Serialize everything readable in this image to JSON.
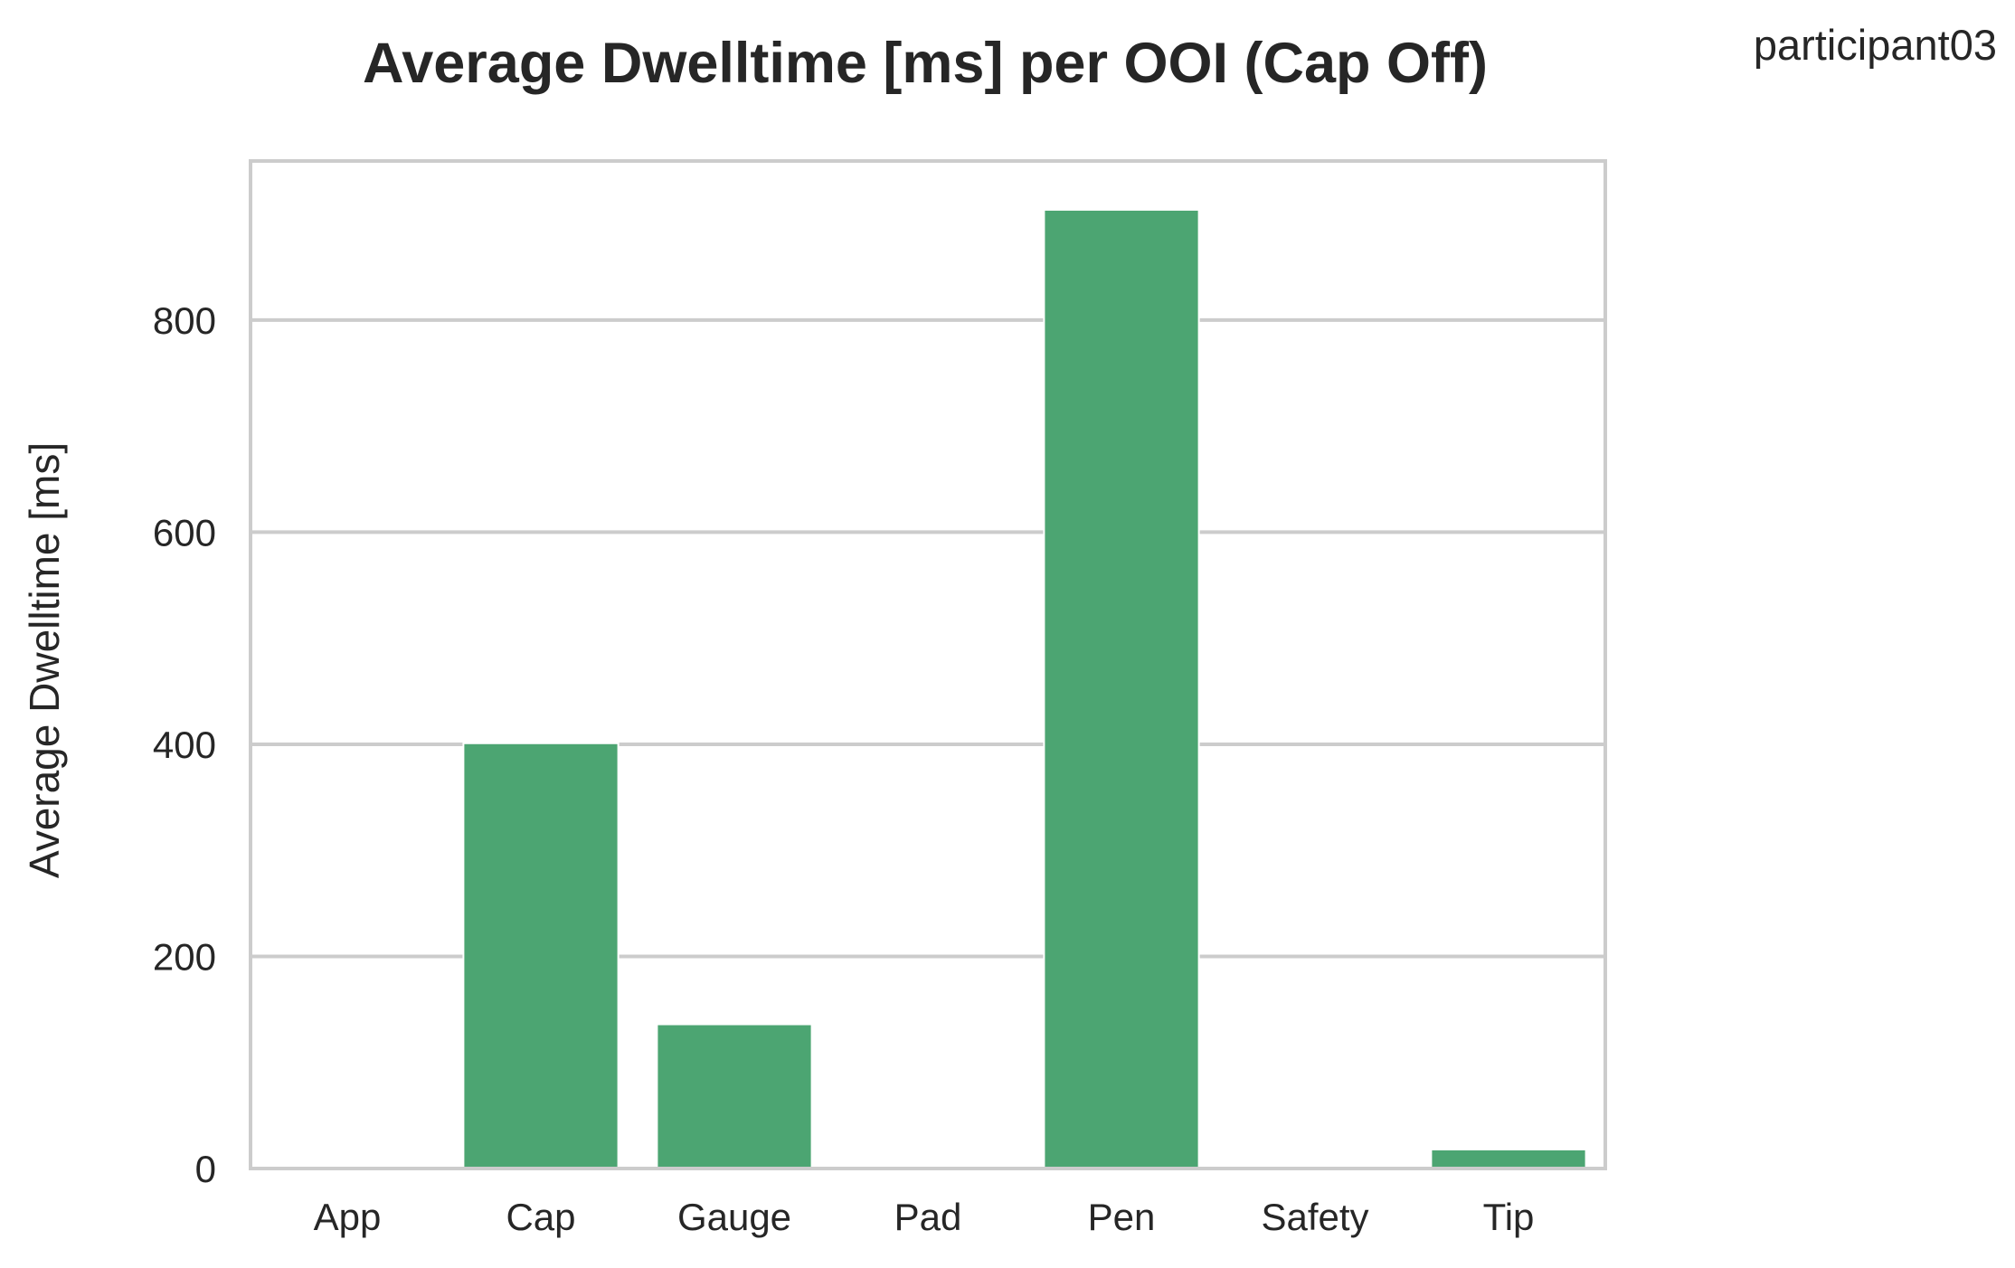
{
  "chart_data": {
    "type": "bar",
    "title": "Average Dwelltime [ms] per OOI (Cap Off)",
    "corner_label": "participant03",
    "xlabel": "",
    "ylabel": "Average Dwelltime [ms]",
    "categories": [
      "App",
      "Cap",
      "Gauge",
      "Pad",
      "Pen",
      "Safety",
      "Tip"
    ],
    "values": [
      0,
      401,
      136,
      0,
      904,
      0,
      18
    ],
    "ylim": [
      0,
      950
    ],
    "yticks": [
      0,
      200,
      400,
      600,
      800
    ],
    "ytick_labels": [
      "0",
      "200",
      "400",
      "600",
      "800"
    ],
    "grid": true,
    "grid_axis": "y",
    "legend": "none",
    "bar_color": "#4ca572",
    "grid_color": "#cccccc",
    "frame_color": "#cccccc",
    "text_color": "#262626"
  }
}
